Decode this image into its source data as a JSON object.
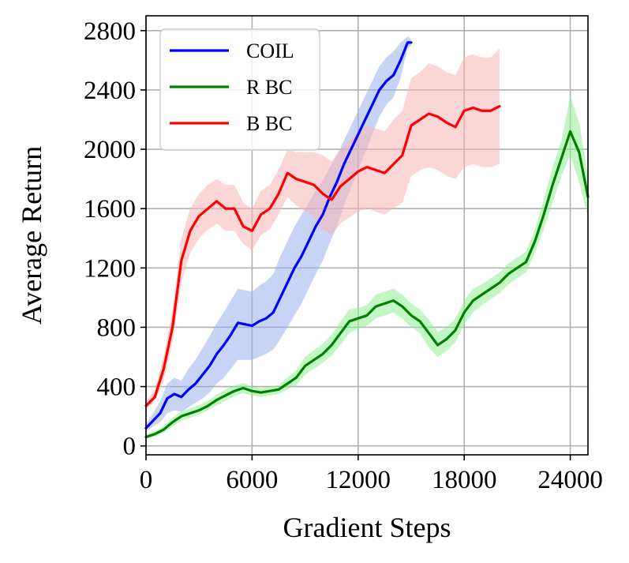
{
  "chart_data": {
    "type": "line",
    "title": "",
    "xlabel": "Gradient Steps",
    "ylabel": "Average Return",
    "xlim": [
      0,
      25000
    ],
    "ylim": [
      -60,
      2900
    ],
    "xticks": [
      0,
      6000,
      12000,
      18000,
      24000
    ],
    "yticks": [
      0,
      400,
      800,
      1200,
      1600,
      2000,
      2400,
      2800
    ],
    "grid": true,
    "legend_position": "top-left",
    "series": [
      {
        "name": "COIL",
        "color": "#0000ff",
        "band_color": "#9bb1ee",
        "x": [
          0,
          400,
          800,
          1200,
          1600,
          2000,
          2400,
          2800,
          3200,
          3600,
          4000,
          4400,
          4800,
          5200,
          5600,
          6000,
          6400,
          6800,
          7200,
          7600,
          8000,
          8400,
          8800,
          9200,
          9600,
          10000,
          10400,
          10800,
          11200,
          11600,
          12000,
          12400,
          12800,
          13200,
          13600,
          14000,
          14400,
          14800,
          15000
        ],
        "y": [
          120,
          170,
          220,
          320,
          350,
          330,
          380,
          420,
          480,
          540,
          620,
          680,
          750,
          830,
          820,
          810,
          840,
          860,
          900,
          1000,
          1100,
          1200,
          1280,
          1380,
          1480,
          1560,
          1680,
          1780,
          1900,
          2000,
          2100,
          2200,
          2300,
          2400,
          2460,
          2500,
          2600,
          2720,
          2720
        ],
        "lower": [
          100,
          130,
          160,
          220,
          240,
          230,
          260,
          290,
          320,
          360,
          420,
          460,
          520,
          580,
          580,
          580,
          600,
          620,
          650,
          720,
          800,
          880,
          960,
          1060,
          1160,
          1250,
          1370,
          1480,
          1620,
          1740,
          1860,
          1980,
          2100,
          2220,
          2300,
          2350,
          2480,
          2680,
          2700
        ],
        "upper": [
          150,
          220,
          300,
          420,
          460,
          440,
          520,
          580,
          660,
          740,
          830,
          900,
          980,
          1060,
          1050,
          1040,
          1080,
          1110,
          1160,
          1280,
          1380,
          1480,
          1560,
          1640,
          1720,
          1790,
          1880,
          1960,
          2060,
          2160,
          2260,
          2360,
          2460,
          2560,
          2620,
          2660,
          2720,
          2760,
          2740
        ]
      },
      {
        "name": "R BC",
        "color": "#008000",
        "band_color": "#90ee90",
        "x": [
          0,
          500,
          1000,
          1500,
          2000,
          2500,
          3000,
          3500,
          4000,
          4500,
          5000,
          5500,
          6000,
          6500,
          7000,
          7500,
          8000,
          8500,
          9000,
          9500,
          10000,
          10500,
          11000,
          11500,
          12000,
          12500,
          13000,
          13500,
          14000,
          14500,
          15000,
          15500,
          16000,
          16500,
          17000,
          17500,
          18000,
          18500,
          19000,
          19500,
          20000,
          20500,
          21000,
          21500,
          22000,
          22500,
          23000,
          23500,
          24000,
          24500,
          25000
        ],
        "y": [
          60,
          80,
          110,
          160,
          200,
          220,
          240,
          270,
          310,
          340,
          370,
          390,
          370,
          360,
          370,
          380,
          420,
          460,
          540,
          580,
          620,
          680,
          760,
          840,
          860,
          880,
          940,
          960,
          980,
          940,
          880,
          840,
          760,
          680,
          720,
          780,
          900,
          980,
          1020,
          1060,
          1100,
          1160,
          1200,
          1240,
          1380,
          1560,
          1760,
          1940,
          2120,
          1980,
          1680
        ],
        "lower": [
          50,
          65,
          90,
          130,
          170,
          190,
          210,
          240,
          275,
          305,
          335,
          355,
          340,
          330,
          340,
          350,
          380,
          410,
          480,
          520,
          560,
          610,
          680,
          760,
          790,
          810,
          860,
          880,
          900,
          860,
          800,
          760,
          660,
          600,
          640,
          700,
          820,
          900,
          950,
          990,
          1030,
          1090,
          1130,
          1170,
          1300,
          1460,
          1640,
          1820,
          1960,
          1780,
          1540
        ],
        "upper": [
          75,
          100,
          135,
          190,
          235,
          255,
          275,
          305,
          345,
          380,
          405,
          425,
          400,
          390,
          400,
          410,
          460,
          510,
          600,
          645,
          690,
          750,
          840,
          920,
          930,
          950,
          1020,
          1040,
          1060,
          1020,
          960,
          920,
          850,
          770,
          800,
          860,
          980,
          1060,
          1090,
          1130,
          1170,
          1230,
          1270,
          1310,
          1460,
          1660,
          1880,
          2060,
          2360,
          2180,
          1820
        ]
      },
      {
        "name": "B BC",
        "color": "#ff0000",
        "band_color": "#f5b5b5",
        "x": [
          0,
          500,
          1000,
          1500,
          2000,
          2500,
          3000,
          3500,
          4000,
          4500,
          5000,
          5500,
          6000,
          6500,
          7000,
          7500,
          8000,
          8500,
          9000,
          9500,
          10000,
          10500,
          11000,
          11500,
          12000,
          12500,
          13000,
          13500,
          14000,
          14500,
          15000,
          15500,
          16000,
          16500,
          17000,
          17500,
          18000,
          18500,
          19000,
          19500,
          20000
        ],
        "y": [
          270,
          330,
          520,
          800,
          1250,
          1450,
          1550,
          1600,
          1650,
          1600,
          1600,
          1480,
          1450,
          1560,
          1600,
          1700,
          1840,
          1800,
          1780,
          1760,
          1700,
          1660,
          1750,
          1800,
          1850,
          1880,
          1860,
          1840,
          1900,
          1960,
          2160,
          2200,
          2240,
          2220,
          2180,
          2150,
          2260,
          2280,
          2260,
          2260,
          2290
        ],
        "lower": [
          250,
          300,
          440,
          700,
          1100,
          1300,
          1400,
          1460,
          1500,
          1450,
          1450,
          1360,
          1320,
          1420,
          1460,
          1560,
          1680,
          1620,
          1580,
          1540,
          1460,
          1420,
          1500,
          1540,
          1580,
          1600,
          1580,
          1560,
          1600,
          1640,
          1820,
          1860,
          1880,
          1860,
          1820,
          1800,
          1880,
          1900,
          1880,
          1880,
          1900
        ],
        "upper": [
          300,
          380,
          600,
          920,
          1400,
          1600,
          1700,
          1760,
          1800,
          1760,
          1760,
          1640,
          1600,
          1720,
          1760,
          1860,
          2000,
          1980,
          1980,
          1980,
          1960,
          1920,
          2000,
          2060,
          2120,
          2160,
          2140,
          2120,
          2200,
          2260,
          2480,
          2520,
          2580,
          2560,
          2520,
          2500,
          2620,
          2640,
          2620,
          2620,
          2680
        ]
      }
    ]
  }
}
